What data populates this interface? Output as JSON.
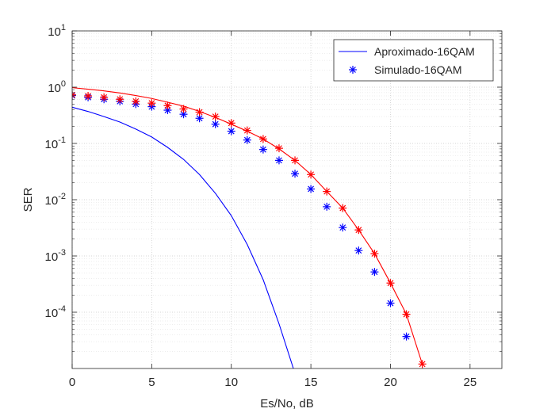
{
  "chart_data": {
    "type": "line",
    "xlabel": "Es/No, dB",
    "ylabel": "SER",
    "xlim": [
      0,
      27
    ],
    "ylim": [
      1e-05,
      10
    ],
    "yscale": "log",
    "grid": true,
    "minor_grid": true,
    "legend_position": "top-right",
    "x_ticks": [
      0,
      5,
      10,
      15,
      20,
      25
    ],
    "x_tick_labels": [
      "0",
      "5",
      "10",
      "15",
      "20",
      "25"
    ],
    "y_ticks": [
      {
        "value": 10,
        "mantissa": "10",
        "exponent": "1"
      },
      {
        "value": 1,
        "mantissa": "10",
        "exponent": "0"
      },
      {
        "value": 0.1,
        "mantissa": "10",
        "exponent": "-1"
      },
      {
        "value": 0.01,
        "mantissa": "10",
        "exponent": "-2"
      },
      {
        "value": 0.001,
        "mantissa": "10",
        "exponent": "-3"
      },
      {
        "value": 0.0001,
        "mantissa": "10",
        "exponent": "-4"
      }
    ],
    "series": [
      {
        "name": "Aproximado-16QAM",
        "style": "line",
        "color": "#0000ff",
        "in_legend": true,
        "x": [
          0,
          1,
          2,
          3,
          4,
          5,
          6,
          7,
          8,
          9,
          10,
          11,
          12,
          13,
          13.9
        ],
        "y": [
          0.44,
          0.37,
          0.3,
          0.24,
          0.18,
          0.13,
          0.085,
          0.052,
          0.028,
          0.013,
          0.0052,
          0.0016,
          0.00038,
          6.2e-05,
          1e-05
        ]
      },
      {
        "name": "Simulado-16QAM",
        "style": "marker-star",
        "color": "#0000ff",
        "in_legend": true,
        "x": [
          0,
          1,
          2,
          3,
          4,
          5,
          6,
          7,
          8,
          9,
          10,
          11,
          12,
          13,
          14,
          15,
          16,
          17,
          18,
          19,
          20,
          21
        ],
        "y": [
          0.71,
          0.66,
          0.61,
          0.56,
          0.5,
          0.45,
          0.39,
          0.33,
          0.28,
          0.22,
          0.165,
          0.115,
          0.078,
          0.05,
          0.029,
          0.0155,
          0.0075,
          0.0032,
          0.00125,
          0.00052,
          0.000145,
          3.7e-05
        ]
      },
      {
        "name": "",
        "style": "line",
        "color": "#ff0000",
        "in_legend": false,
        "x": [
          0,
          1,
          2,
          3,
          4,
          5,
          6,
          7,
          8,
          9,
          10,
          11,
          12,
          13,
          14,
          15,
          16,
          17,
          18,
          19,
          20,
          21,
          22
        ],
        "y": [
          0.98,
          0.92,
          0.86,
          0.79,
          0.71,
          0.63,
          0.54,
          0.46,
          0.37,
          0.29,
          0.22,
          0.165,
          0.12,
          0.08,
          0.05,
          0.028,
          0.014,
          0.0071,
          0.0029,
          0.0011,
          0.00033,
          9.2e-05,
          1.2e-05
        ]
      },
      {
        "name": "",
        "style": "marker-star",
        "color": "#ff0000",
        "in_legend": false,
        "x": [
          0,
          1,
          2,
          3,
          4,
          5,
          6,
          7,
          8,
          9,
          10,
          11,
          12,
          13,
          14,
          15,
          16,
          17,
          18,
          19,
          20,
          21,
          22
        ],
        "y": [
          0.73,
          0.7,
          0.66,
          0.61,
          0.56,
          0.52,
          0.47,
          0.41,
          0.36,
          0.3,
          0.23,
          0.17,
          0.12,
          0.082,
          0.05,
          0.028,
          0.014,
          0.0071,
          0.0029,
          0.0011,
          0.00033,
          9.2e-05,
          1.2e-05
        ]
      }
    ]
  }
}
